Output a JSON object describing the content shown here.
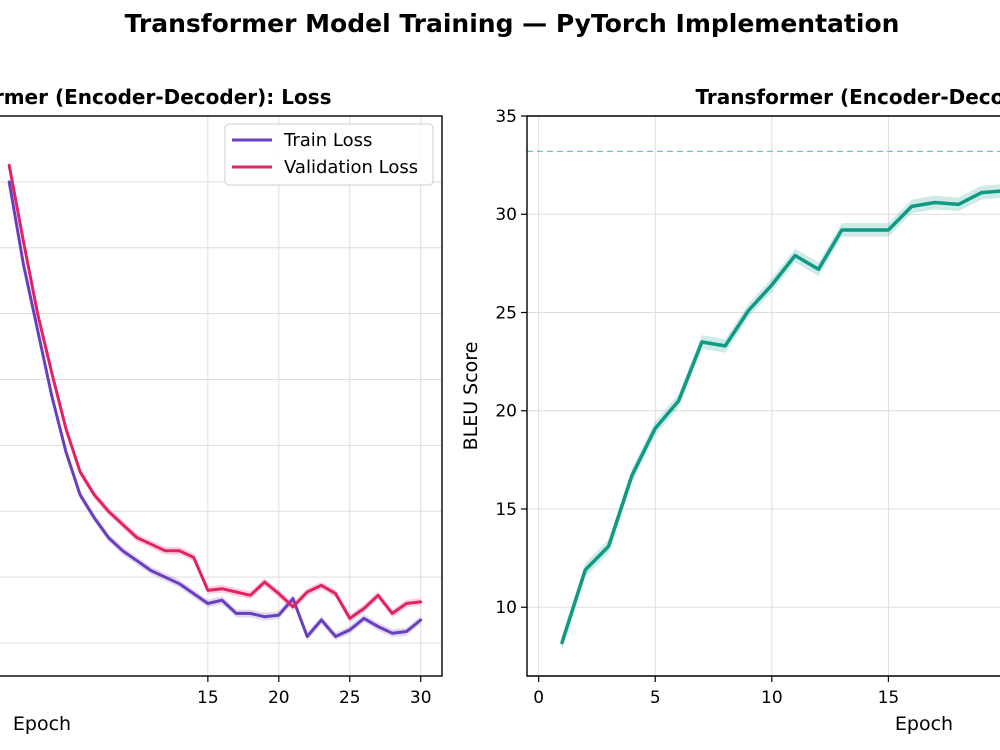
{
  "figure": {
    "suptitle": "Transformer Model Training — PyTorch Implementation"
  },
  "chart_data": [
    {
      "type": "line",
      "title": "Transformer (Encoder-Decoder): Loss",
      "xlabel": "Epoch",
      "ylabel": "",
      "x": [
        1,
        2,
        3,
        4,
        5,
        6,
        7,
        8,
        9,
        10,
        11,
        12,
        13,
        14,
        15,
        16,
        17,
        18,
        19,
        20,
        21,
        22,
        23,
        24,
        25,
        26,
        27,
        28,
        29,
        30
      ],
      "xticks": [
        15,
        20,
        25,
        30
      ],
      "xlim": [
        0,
        31.5
      ],
      "ylim": [
        0.3,
        2.0
      ],
      "legend": "top-right",
      "grid": true,
      "series": [
        {
          "name": "Train Loss",
          "color": "#6a3fbf",
          "values": [
            1.8,
            1.55,
            1.35,
            1.15,
            0.98,
            0.85,
            0.78,
            0.72,
            0.68,
            0.65,
            0.62,
            0.6,
            0.58,
            0.55,
            0.52,
            0.53,
            0.49,
            0.49,
            0.48,
            0.485,
            0.535,
            0.42,
            0.47,
            0.42,
            0.44,
            0.475,
            0.45,
            0.43,
            0.435,
            0.47
          ],
          "band": 0.012
        },
        {
          "name": "Validation Loss",
          "color": "#e32264",
          "values": [
            1.85,
            1.62,
            1.4,
            1.22,
            1.05,
            0.92,
            0.85,
            0.8,
            0.76,
            0.72,
            0.7,
            0.68,
            0.68,
            0.66,
            0.56,
            0.565,
            0.555,
            0.545,
            0.585,
            0.55,
            0.51,
            0.555,
            0.575,
            0.55,
            0.475,
            0.505,
            0.545,
            0.49,
            0.52,
            0.525
          ],
          "band": 0.012
        }
      ]
    },
    {
      "type": "line",
      "title": "Transformer (Encoder-Decoder): BLEU Score",
      "xlabel": "Epoch",
      "ylabel": "BLEU Score",
      "x": [
        1,
        2,
        3,
        4,
        5,
        6,
        7,
        8,
        9,
        10,
        11,
        12,
        13,
        14,
        15,
        16,
        17,
        18,
        19,
        20
      ],
      "xticks": [
        0,
        5,
        10,
        15
      ],
      "yticks": [
        10,
        15,
        20,
        25,
        30,
        35
      ],
      "xlim": [
        -0.5,
        20
      ],
      "ylim": [
        6.5,
        35
      ],
      "grid": true,
      "hline": {
        "value": 33.2,
        "color": "#6cc7bd"
      },
      "series": [
        {
          "name": "BLEU",
          "color": "#0f9a85",
          "values": [
            8.2,
            11.9,
            13.1,
            16.7,
            19.1,
            20.5,
            23.5,
            23.3,
            25.1,
            26.4,
            27.9,
            27.2,
            29.2,
            29.2,
            29.2,
            30.4,
            30.6,
            30.5,
            31.1,
            31.2
          ],
          "band": 0.35
        }
      ]
    }
  ]
}
